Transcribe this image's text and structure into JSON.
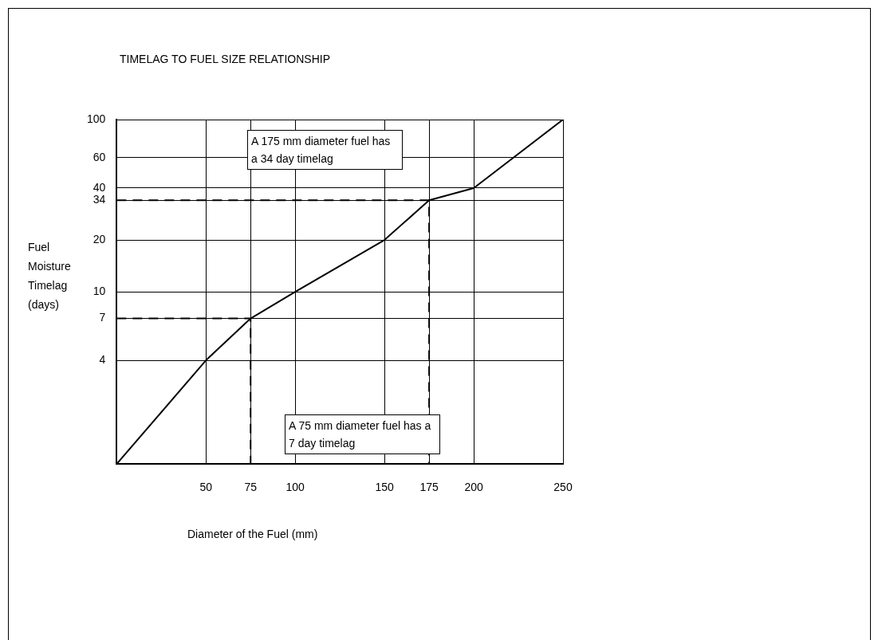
{
  "chart_data": {
    "type": "line",
    "title": "TIMELAG TO FUEL SIZE RELATIONSHIP",
    "xlabel": "Diameter of the Fuel (mm)",
    "ylabel": "Fuel Moisture Timelag (days)",
    "series": [
      {
        "color": "#000000",
        "x": [
          0,
          50,
          75,
          100,
          150,
          175,
          200,
          250
        ],
        "values": [
          1,
          4,
          7,
          10,
          20,
          34,
          40,
          100
        ],
        "line_style": "solid"
      },
      {
        "color": "#000000",
        "x": [
          0,
          75,
          75
        ],
        "values": [
          7,
          7,
          1
        ],
        "line_style": "dashed"
      },
      {
        "color": "#000000",
        "x": [
          0,
          175,
          175
        ],
        "values": [
          34,
          34,
          1
        ],
        "line_style": "dashed"
      }
    ],
    "log": "y",
    "xlim": [
      0,
      250
    ],
    "xticks": [
      50,
      75,
      100,
      150,
      175,
      200,
      250
    ],
    "ylim": [
      1,
      100
    ],
    "yticks": [
      4,
      7,
      10,
      20,
      34,
      40,
      60,
      100
    ],
    "grid": true,
    "marker": "none",
    "legend": false,
    "annotations": [
      "A 175 mm diameter fuel has a 34 day timelag",
      "A 75 mm diameter fuel has a 7 day timelag"
    ]
  }
}
